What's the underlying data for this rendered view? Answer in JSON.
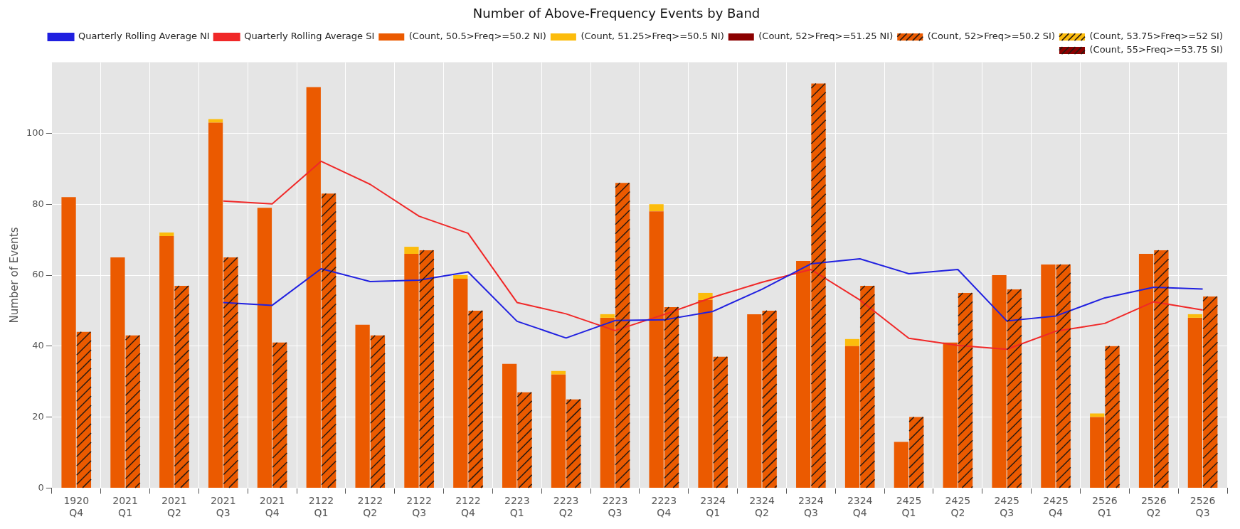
{
  "chart_data": {
    "type": "bar",
    "title": "Number of Above-Frequency Events by Band",
    "ylabel": "Number of Events",
    "categories": [
      "1920 Q4",
      "2021 Q1",
      "2021 Q2",
      "2021 Q3",
      "2021 Q4",
      "2122 Q1",
      "2122 Q2",
      "2122 Q3",
      "2122 Q4",
      "2223 Q1",
      "2223 Q2",
      "2223 Q3",
      "2223 Q4",
      "2324 Q1",
      "2324 Q2",
      "2324 Q3",
      "2324 Q4",
      "2425 Q1",
      "2425 Q2",
      "2425 Q3",
      "2425 Q4",
      "2526 Q1",
      "2526 Q2",
      "2526 Q3"
    ],
    "ylim": [
      0,
      120
    ],
    "yticks": [
      0,
      20,
      40,
      60,
      80,
      100
    ],
    "grid": true,
    "legend": "top right",
    "series": [
      {
        "name": "Quarterly Rolling Average NI",
        "type": "line",
        "color": "#2020e0",
        "values": [
          null,
          null,
          null,
          52.3,
          51.5,
          61.8,
          58.2,
          58.6,
          60.9,
          47,
          42.3,
          47.2,
          47.4,
          49.8,
          56,
          63.2,
          64.6,
          60.4,
          61.6,
          47.1,
          48.5,
          53.6,
          56.6,
          56.1
        ]
      },
      {
        "name": "Quarterly Rolling Average SI",
        "type": "line",
        "color": "#f02828",
        "values": [
          null,
          null,
          null,
          80.9,
          80.1,
          92.1,
          85.6,
          76.6,
          71.8,
          52.3,
          49.1,
          44.4,
          48.9,
          53.8,
          58,
          61.6,
          53,
          42.2,
          40.2,
          39.1,
          44.2,
          46.4,
          52.5,
          50.2
        ]
      },
      {
        "name": "(Count, 50.5>Freq>=50.2 NI)",
        "color": "#eb5a00",
        "values": [
          82,
          65,
          71,
          103,
          79,
          113,
          46,
          66,
          59,
          35,
          32,
          48,
          78,
          53,
          49,
          64,
          40,
          13,
          41,
          60,
          63,
          20,
          66,
          48
        ]
      },
      {
        "name": "(Count, 51.25>Freq>=50.5 NI)",
        "color": "#fcbc0c",
        "values": [
          null,
          null,
          1,
          1,
          null,
          null,
          null,
          2,
          1,
          null,
          1,
          1,
          2,
          2,
          null,
          null,
          2,
          null,
          null,
          null,
          null,
          1,
          null,
          1
        ],
        "base": [
          null,
          null,
          71,
          103,
          null,
          null,
          null,
          66,
          59,
          null,
          32,
          48,
          78,
          53,
          null,
          null,
          40,
          null,
          null,
          null,
          null,
          20,
          null,
          48
        ]
      },
      {
        "name": "(Count, 52>Freq>=51.25 NI)",
        "color": "#8b0000",
        "values": [
          null,
          null,
          null,
          null,
          null,
          null,
          null,
          null,
          null,
          null,
          null,
          null,
          null,
          null,
          null,
          null,
          null,
          null,
          null,
          null,
          null,
          null,
          null,
          null
        ]
      },
      {
        "name": "(Count, 52>Freq>=50.2 SI)",
        "color": "#eb5a00",
        "values": [
          44,
          43,
          57,
          65,
          41,
          83,
          43,
          67,
          50,
          27,
          25,
          86,
          51,
          37,
          50,
          114,
          57,
          20,
          55,
          56,
          63,
          40,
          67,
          54
        ]
      },
      {
        "name": "(Count, 53.75>Freq>=52 SI)",
        "color": "#fcbc0c",
        "values": [
          null,
          null,
          null,
          null,
          null,
          null,
          null,
          null,
          null,
          null,
          null,
          null,
          null,
          null,
          null,
          null,
          null,
          null,
          null,
          null,
          null,
          null,
          null,
          null
        ]
      },
      {
        "name": "(Count, 55>Freq>=53.75 SI)",
        "color": "#8b0000",
        "values": [
          null,
          null,
          null,
          null,
          null,
          null,
          null,
          null,
          null,
          null,
          null,
          null,
          null,
          null,
          null,
          null,
          null,
          null,
          null,
          null,
          null,
          null,
          null,
          null
        ]
      }
    ]
  }
}
